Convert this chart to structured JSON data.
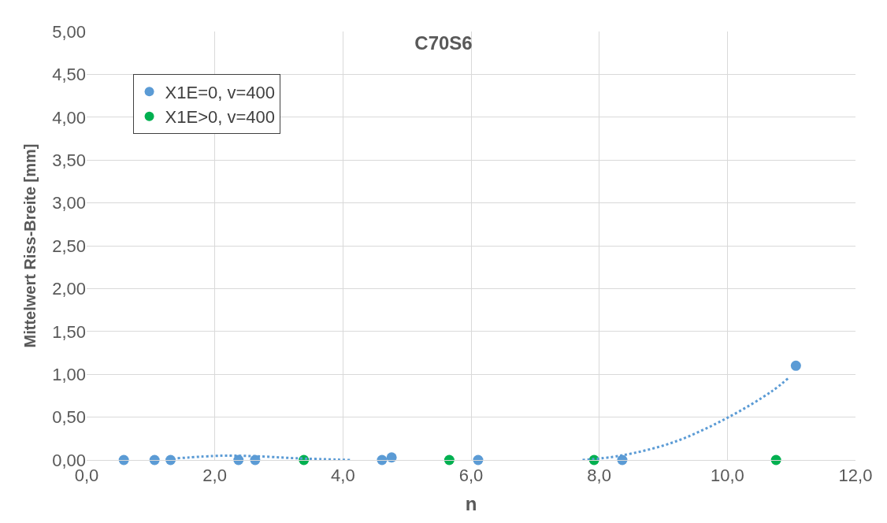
{
  "chart_data": {
    "type": "scatter",
    "title": "C70S6",
    "xlabel": "n",
    "ylabel": "Mittelwert Riss-Breite [mm]",
    "xlim": [
      0,
      12
    ],
    "ylim": [
      0,
      5
    ],
    "xticks": [
      {
        "value": 0,
        "label": "0,0"
      },
      {
        "value": 2,
        "label": "2,0"
      },
      {
        "value": 4,
        "label": "4,0"
      },
      {
        "value": 6,
        "label": "6,0"
      },
      {
        "value": 8,
        "label": "8,0"
      },
      {
        "value": 10,
        "label": "10,0"
      },
      {
        "value": 12,
        "label": "12,0"
      }
    ],
    "yticks": [
      {
        "value": 0,
        "label": "0,00"
      },
      {
        "value": 0.5,
        "label": "0,50"
      },
      {
        "value": 1,
        "label": "1,00"
      },
      {
        "value": 1.5,
        "label": "1,50"
      },
      {
        "value": 2,
        "label": "2,00"
      },
      {
        "value": 2.5,
        "label": "2,50"
      },
      {
        "value": 3,
        "label": "3,00"
      },
      {
        "value": 3.5,
        "label": "3,50"
      },
      {
        "value": 4,
        "label": "4,00"
      },
      {
        "value": 4.5,
        "label": "4,50"
      },
      {
        "value": 5,
        "label": "5,00"
      }
    ],
    "grid": true,
    "legend": "top left",
    "marker": "circle",
    "series": [
      {
        "name": "X1E=0, v=400",
        "color": "#5b9bd5",
        "x": [
          0.58,
          1.06,
          1.31,
          2.37,
          2.63,
          4.61,
          4.76,
          6.11,
          8.36,
          11.07
        ],
        "values": [
          0,
          0,
          0,
          0,
          0,
          0,
          0.03,
          0,
          0,
          1.1
        ]
      },
      {
        "name": "X1E>0, v=400",
        "color": "#00b050",
        "x": [
          3.39,
          5.66,
          7.92,
          10.76
        ],
        "values": [
          0,
          0,
          0,
          0
        ]
      },
      {
        "type": "line",
        "line_style": "dotted",
        "marker": "none",
        "color": "#5b9bd5",
        "x": [
          1.42,
          2.1,
          2.6,
          3.28,
          4.12,
          5.0,
          7.74,
          8.33,
          9.17,
          10.02,
          10.69,
          10.96
        ],
        "values": [
          0.02,
          0.05,
          0.045,
          0.02,
          0,
          null,
          0,
          0.05,
          0.21,
          0.5,
          0.8,
          0.96
        ]
      }
    ]
  }
}
